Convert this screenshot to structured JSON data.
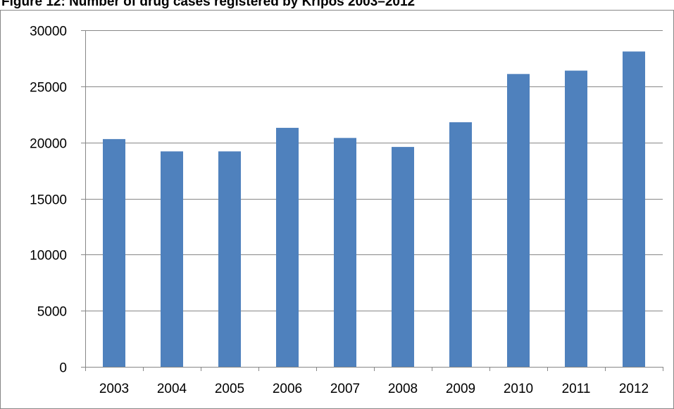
{
  "figure": {
    "title": "Figure 12: Number of drug cases registered by Kripos 2003–2012"
  },
  "chart_data": {
    "type": "bar",
    "categories": [
      "2003",
      "2004",
      "2005",
      "2006",
      "2007",
      "2008",
      "2009",
      "2010",
      "2011",
      "2012"
    ],
    "values": [
      20300,
      19200,
      19200,
      21300,
      20400,
      19600,
      21800,
      26100,
      26400,
      28100
    ],
    "ylim": [
      0,
      30000
    ],
    "yticks": [
      0,
      5000,
      10000,
      15000,
      20000,
      25000,
      30000
    ],
    "grid": true,
    "legend": "none",
    "colors": {
      "bar": "#4f81bd",
      "grid": "#878787",
      "axis": "#878787",
      "frame": "#878787"
    }
  }
}
